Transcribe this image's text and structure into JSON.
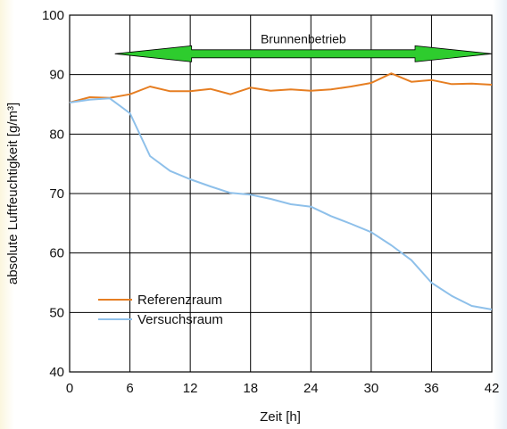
{
  "chart_data": {
    "type": "line",
    "xlabel": "Zeit [h]",
    "ylabel": "absolute Luftfeuchtigkeit [g/m³]",
    "xlim": [
      0,
      42
    ],
    "ylim": [
      40,
      100
    ],
    "xticks": [
      0,
      6,
      12,
      18,
      24,
      30,
      36,
      42
    ],
    "yticks": [
      40,
      50,
      60,
      70,
      80,
      90,
      100
    ],
    "grid": true,
    "legend_position": "bottom-left",
    "annotation": {
      "text": "Brunnenbetrieb",
      "x_start": 4.5,
      "x_end": 42,
      "y": 93.5,
      "color": "#2ecc2e"
    },
    "series": [
      {
        "name": "Referenzraum",
        "color": "#e67e22",
        "x": [
          0,
          2,
          4,
          6,
          8,
          10,
          12,
          14,
          16,
          18,
          20,
          22,
          24,
          26,
          28,
          30,
          32,
          34,
          36,
          38,
          40,
          42
        ],
        "y": [
          85.3,
          86.2,
          86.1,
          86.7,
          88.0,
          87.2,
          87.2,
          87.6,
          86.7,
          87.8,
          87.3,
          87.5,
          87.3,
          87.5,
          88.0,
          88.6,
          90.2,
          88.8,
          89.1,
          88.4,
          88.5,
          88.3
        ]
      },
      {
        "name": "Versuchsraum",
        "color": "#8ec0ea",
        "x": [
          0,
          2,
          4,
          6,
          8,
          10,
          12,
          14,
          16,
          18,
          20,
          22,
          24,
          26,
          28,
          30,
          32,
          34,
          36,
          38,
          40,
          42
        ],
        "y": [
          85.3,
          85.8,
          86.0,
          83.5,
          76.3,
          73.8,
          72.4,
          71.2,
          70.1,
          69.8,
          69.1,
          68.2,
          67.8,
          66.2,
          64.9,
          63.5,
          61.3,
          58.8,
          55.0,
          52.8,
          51.1,
          50.5
        ]
      }
    ]
  }
}
